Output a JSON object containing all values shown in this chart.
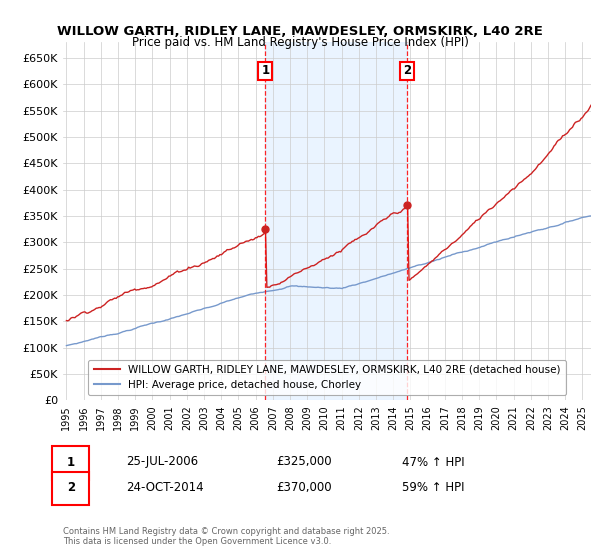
{
  "title": "WILLOW GARTH, RIDLEY LANE, MAWDESLEY, ORMSKIRK, L40 2RE",
  "subtitle": "Price paid vs. HM Land Registry's House Price Index (HPI)",
  "ylim": [
    0,
    680000
  ],
  "yticks": [
    0,
    50000,
    100000,
    150000,
    200000,
    250000,
    300000,
    350000,
    400000,
    450000,
    500000,
    550000,
    600000,
    650000
  ],
  "ytick_labels": [
    "£0",
    "£50K",
    "£100K",
    "£150K",
    "£200K",
    "£250K",
    "£300K",
    "£350K",
    "£400K",
    "£450K",
    "£500K",
    "£550K",
    "£600K",
    "£650K"
  ],
  "hpi_color": "#7799cc",
  "house_color": "#cc2222",
  "fill_color": "#ddeeff",
  "grid_color": "#cccccc",
  "background_color": "#ffffff",
  "vline1_x": 2006.56,
  "vline2_x": 2014.81,
  "sale1_price": 325000,
  "sale2_price": 370000,
  "legend_house": "WILLOW GARTH, RIDLEY LANE, MAWDESLEY, ORMSKIRK, L40 2RE (detached house)",
  "legend_hpi": "HPI: Average price, detached house, Chorley",
  "annotation1": [
    "1",
    "25-JUL-2006",
    "£325,000",
    "47% ↑ HPI"
  ],
  "annotation2": [
    "2",
    "24-OCT-2014",
    "£370,000",
    "59% ↑ HPI"
  ],
  "footnote": "Contains HM Land Registry data © Crown copyright and database right 2025.\nThis data is licensed under the Open Government Licence v3.0.",
  "xlim_start": 1994.8,
  "xlim_end": 2025.5,
  "title_fontsize": 9.5,
  "tick_fontsize": 8,
  "legend_fontsize": 7.5
}
